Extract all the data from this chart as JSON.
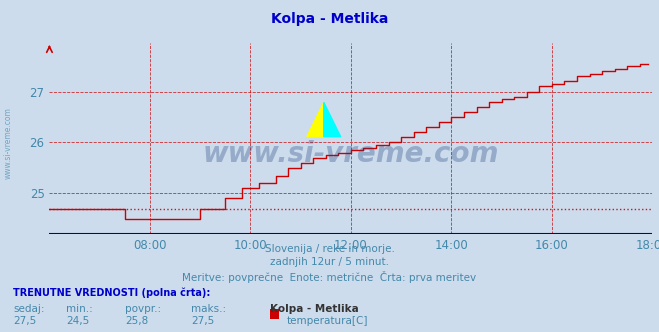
{
  "title": "Kolpa - Metlika",
  "title_color": "#0000cc",
  "bg_color": "#ccdcec",
  "plot_bg_color": "#ccdcec",
  "line_color": "#cc0000",
  "grid_color": "#cc0000",
  "text_color": "#4488aa",
  "blue_axis_color": "#0000aa",
  "xlabel_texts": [
    "08:00",
    "10:00",
    "12:00",
    "14:00",
    "16:00",
    "18:00"
  ],
  "xmin": 0,
  "xmax": 144,
  "ymin": 24.2,
  "ymax": 27.95,
  "yticks": [
    25,
    26,
    27
  ],
  "avg_value": 24.7,
  "subtitle1": "Slovenija / reke in morje.",
  "subtitle2": "zadnjih 12ur / 5 minut.",
  "subtitle3": "Meritve: povprečne  Enote: metrične  Črta: prva meritev",
  "footer_bold": "TRENUTNE VREDNOSTI (polna črta):",
  "footer_labels": [
    "sedaj:",
    "min.:",
    "povpr.:",
    "maks.:"
  ],
  "footer_values": [
    "27,5",
    "24,5",
    "25,8",
    "27,5"
  ],
  "footer_station": "Kolpa - Metlika",
  "footer_legend": "temperatura[C]",
  "footer_legend_color": "#cc0000",
  "watermark": "www.si-vreme.com",
  "watermark_color": "#1a3a7a",
  "side_text": "www.si-vreme.com"
}
